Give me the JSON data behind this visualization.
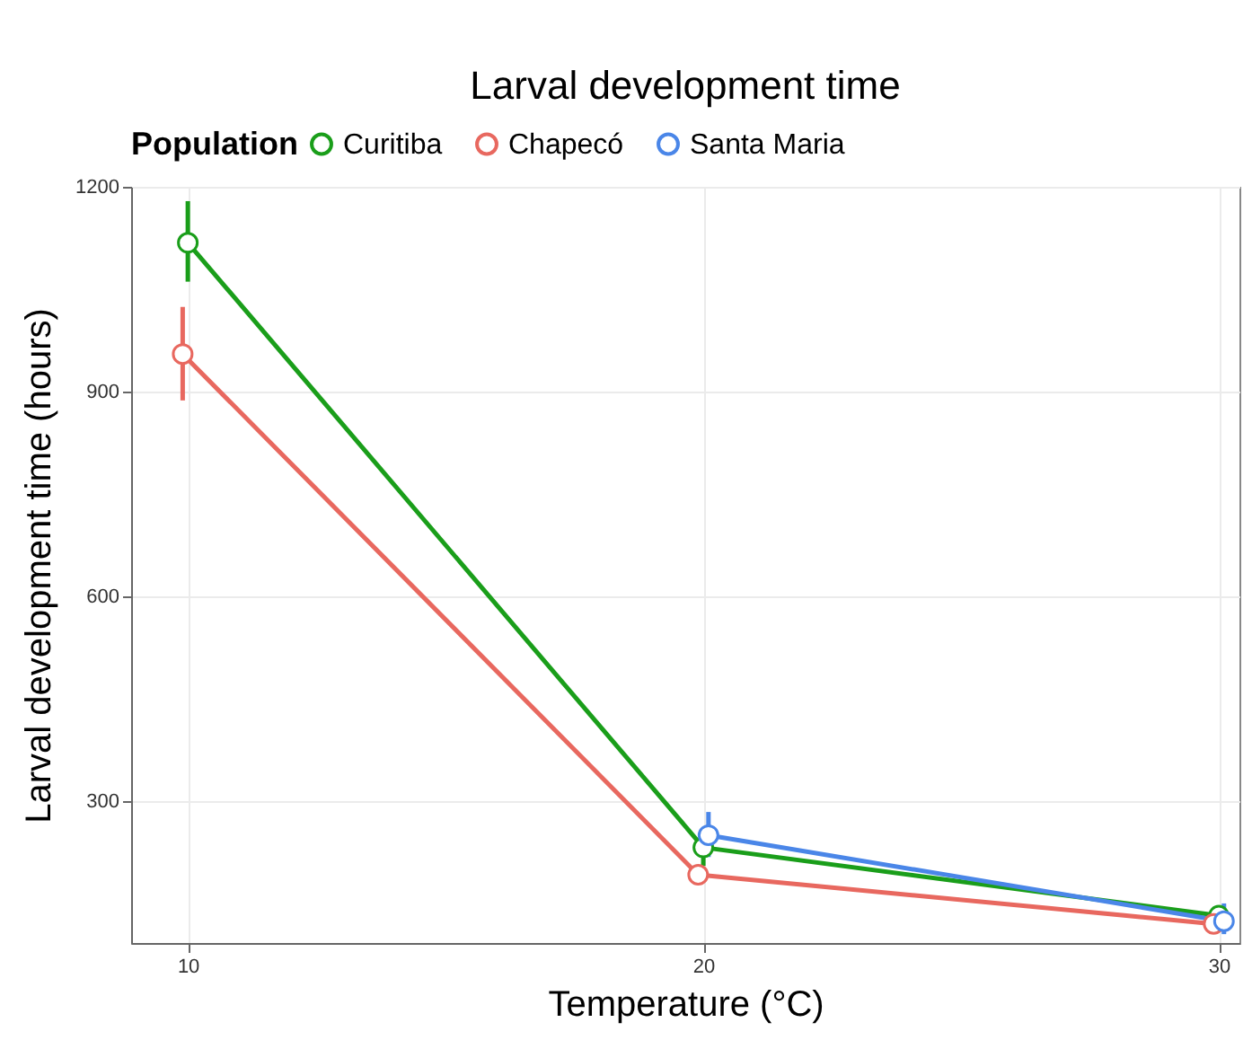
{
  "chart_data": {
    "type": "line",
    "title": "Larval development time",
    "xlabel": "Temperature (°C)",
    "ylabel": "Larval development time (hours)",
    "legend_title": "Population",
    "xlim": [
      8.9,
      30.4
    ],
    "xticks": [
      10,
      20,
      30
    ],
    "ylim": [
      92,
      1200
    ],
    "yticks": [
      300,
      600,
      900,
      1200
    ],
    "series": [
      {
        "name": "Curitiba",
        "color": "#1a9e1a",
        "x": [
          10.0,
          20.0,
          30.0
        ],
        "values": [
          1118,
          232,
          132
        ],
        "errors": [
          [
            1061,
            1179
          ],
          [
            205,
            250
          ],
          [
            124,
            140
          ]
        ]
      },
      {
        "name": "Chapecó",
        "color": "#e8685f",
        "x": [
          9.9,
          19.9,
          29.9
        ],
        "values": [
          955,
          192,
          120
        ],
        "errors": [
          [
            887,
            1024
          ],
          null,
          null
        ]
      },
      {
        "name": "Santa Maria",
        "color": "#4a86e8",
        "x": [
          20.1,
          30.1
        ],
        "values": [
          250,
          124
        ],
        "errors": [
          [
            218,
            284
          ],
          [
            105,
            150
          ]
        ]
      }
    ],
    "grid": true,
    "legend": "top",
    "marker": "circle",
    "line_style": "solid"
  }
}
